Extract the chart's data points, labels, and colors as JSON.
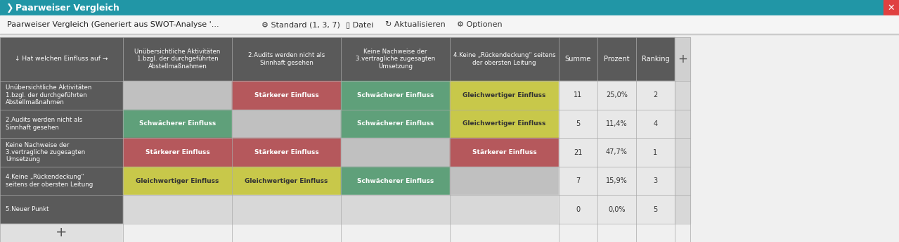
{
  "title_bar": "Paarweiser Vergleich",
  "title_bar_bg": "#2196a6",
  "title_bar_fg": "white",
  "close_btn_bg": "#e04040",
  "bg_color": "#f0f0f0",
  "header_bg": "#5a5a5a",
  "header_fg": "white",
  "col_headers": [
    "Unübersichtliche Aktivitäten\n1.bzgl. der durchgeführten\nAbstellmaßnahmen",
    "2.Audits werden nicht als\nSinnhaft gesehen",
    "Keine Nachweise der\n3.vertragliche zugesagten\nUmsetzung",
    "4.Keine „Rückendeckung“ seitens\nder obersten Leitung"
  ],
  "row_headers": [
    "Unübersichtliche Aktivitäten\n1.bzgl. der durchgeführten\nAbstellmaßnahmen",
    "2.Audits werden nicht als\nSinnhaft gesehen",
    "Keine Nachweise der\n3.vertragliche zugesagten\nUmsetzung",
    "4.Keine „Rückendeckung“\nseitens der obersten Leitung",
    "5.Neuer Punkt"
  ],
  "summe_vals": [
    11,
    5,
    21,
    7,
    0
  ],
  "prozent_vals": [
    "25,0%",
    "11,4%",
    "47,7%",
    "15,9%",
    "0,0%"
  ],
  "ranking_vals": [
    2,
    4,
    1,
    3,
    5
  ],
  "cell_data": [
    [
      null,
      "Stärkerer Einfluss",
      "Schwächerer Einfluss",
      "Gleichwertiger Einfluss"
    ],
    [
      "Schwächerer Einfluss",
      null,
      "Schwächerer Einfluss",
      "Gleichwertiger Einfluss"
    ],
    [
      "Stärkerer Einfluss",
      "Stärkerer Einfluss",
      null,
      "Stärkerer Einfluss"
    ],
    [
      "Gleichwertiger Einfluss",
      "Gleichwertiger Einfluss",
      "Schwächerer Einfluss",
      null
    ],
    [
      null,
      null,
      null,
      null
    ]
  ],
  "cell_colors": {
    "Stärkerer Einfluss": "#b5585c",
    "Schwächerer Einfluss": "#5fa07a",
    "Gleichwertiger Einfluss": "#c8c84a",
    "null_diagonal": "#c0c0c0",
    "null_empty": "#d8d8d8"
  },
  "cell_text_color": "white",
  "gleichwertiger_text_color": "#333333",
  "summe_bg": "#e8e8e8",
  "summe_fg": "#333333",
  "plus_bg": "#d0d0d0",
  "bottom_plus_bg": "#e0e0e0"
}
